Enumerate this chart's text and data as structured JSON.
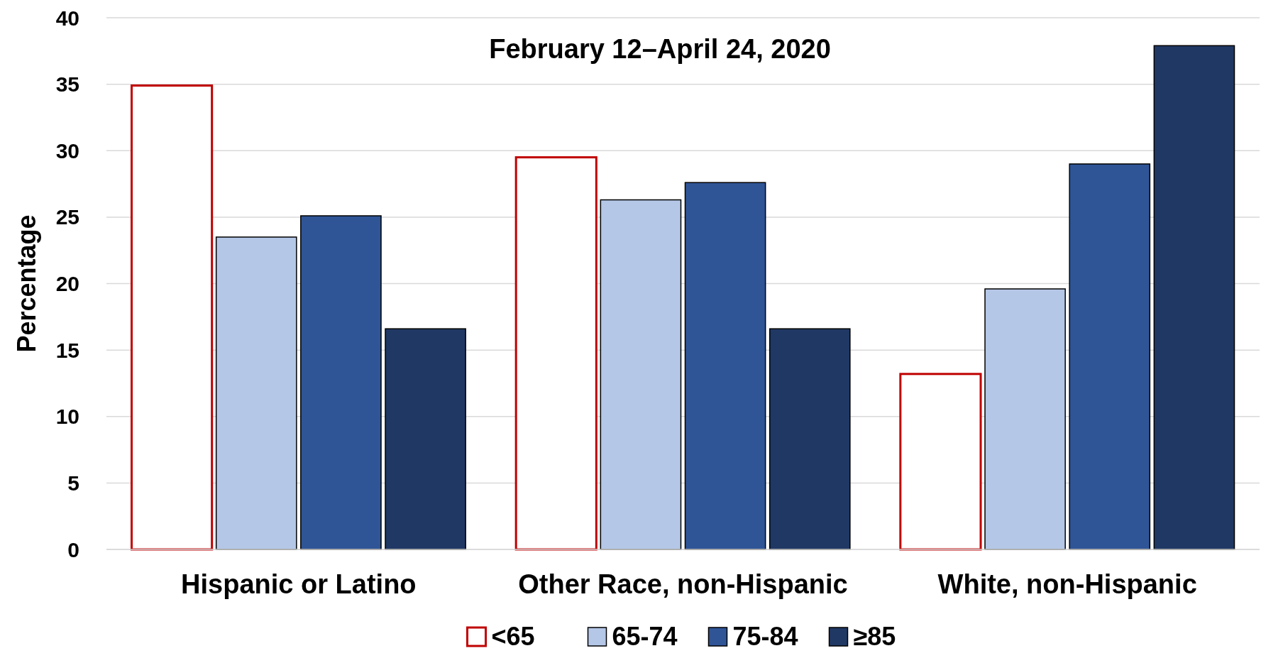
{
  "chart_data": {
    "type": "bar",
    "title": "February 12–April 24, 2020",
    "ylabel": "Percentage",
    "categories": [
      "Hispanic or Latino",
      "Other Race, non-Hispanic",
      "White, non-Hispanic"
    ],
    "series": [
      {
        "name": "<65",
        "color": "#c00000",
        "values": [
          34.9,
          29.5,
          13.2
        ]
      },
      {
        "name": "65-74",
        "color": "#b4c7e7",
        "values": [
          23.5,
          26.3,
          19.6
        ]
      },
      {
        "name": "75-84",
        "color": "#2f5597",
        "values": [
          25.1,
          27.6,
          29.0
        ]
      },
      {
        "name": "≥85",
        "color": "#203864",
        "values": [
          16.6,
          16.6,
          37.9
        ]
      }
    ],
    "ylim": [
      0,
      40
    ],
    "yticks": [
      0,
      5,
      10,
      15,
      20,
      25,
      30,
      35,
      40
    ],
    "grid": "y",
    "legend": "bottom"
  }
}
